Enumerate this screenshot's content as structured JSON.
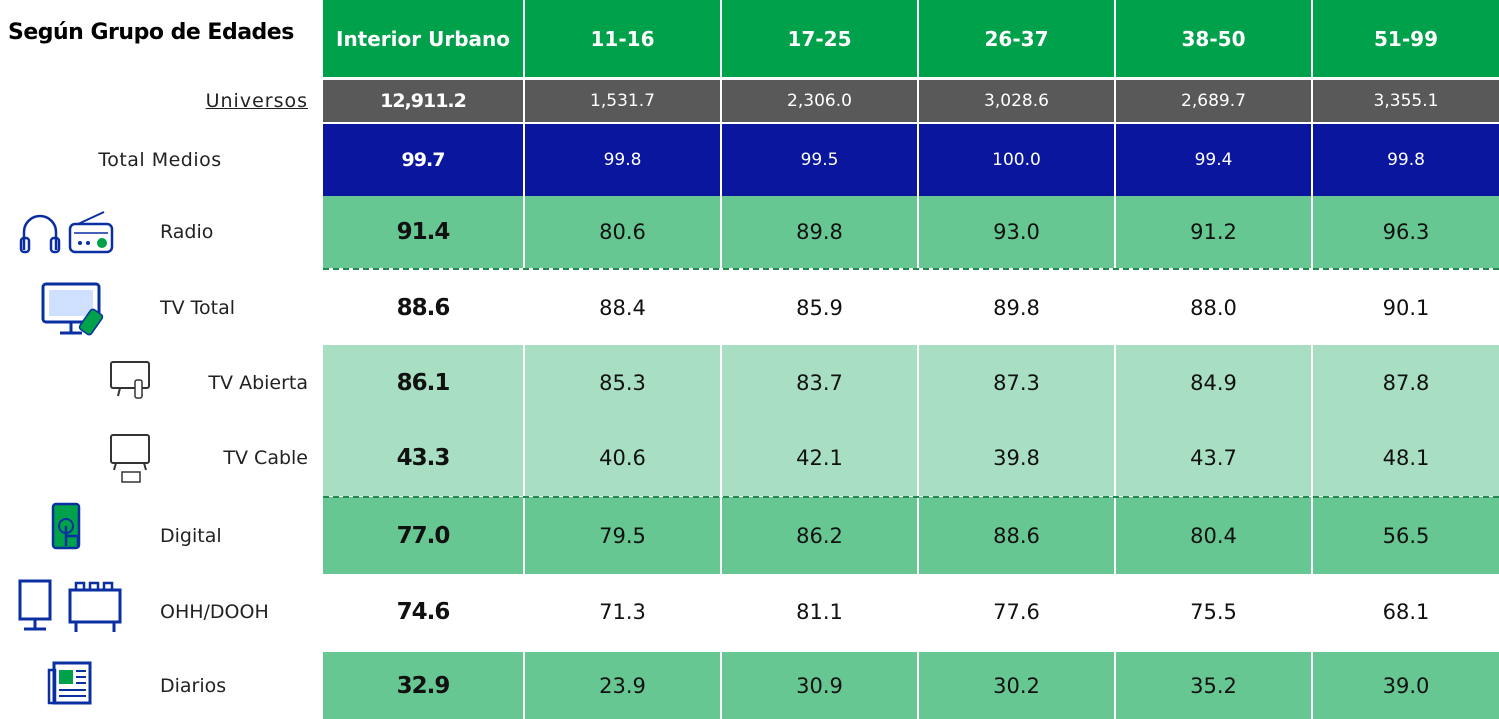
{
  "header": {
    "title": "Según Grupo de Edades"
  },
  "table": {
    "columns": [
      "Interior Urbano",
      "11-16",
      "17-25",
      "26-37",
      "38-50",
      "51-99"
    ],
    "rows": [
      {
        "label": "Universos",
        "values": [
          "12,911.2",
          "1,531.7",
          "2,306.0",
          "3,028.6",
          "2,689.7",
          "3,355.1"
        ]
      },
      {
        "label": "Total Medios",
        "values": [
          "99.7",
          "99.8",
          "99.5",
          "100.0",
          "99.4",
          "99.8"
        ]
      },
      {
        "label": "Radio",
        "values": [
          "91.4",
          "80.6",
          "89.8",
          "93.0",
          "91.2",
          "96.3"
        ]
      },
      {
        "label": "TV Total",
        "values": [
          "88.6",
          "88.4",
          "85.9",
          "89.8",
          "88.0",
          "90.1"
        ]
      },
      {
        "label": "TV Abierta",
        "values": [
          "86.1",
          "85.3",
          "83.7",
          "87.3",
          "84.9",
          "87.8"
        ]
      },
      {
        "label": "TV Cable",
        "values": [
          "43.3",
          "40.6",
          "42.1",
          "39.8",
          "43.7",
          "48.1"
        ]
      },
      {
        "label": "Digital",
        "values": [
          "77.0",
          "79.5",
          "86.2",
          "88.6",
          "80.4",
          "56.5"
        ]
      },
      {
        "label": "OHH/DOOH",
        "values": [
          "74.6",
          "71.3",
          "81.1",
          "77.6",
          "75.5",
          "68.1"
        ]
      },
      {
        "label": "Diarios",
        "values": [
          "32.9",
          "23.9",
          "30.9",
          "30.2",
          "35.2",
          "39.0"
        ]
      }
    ]
  }
}
